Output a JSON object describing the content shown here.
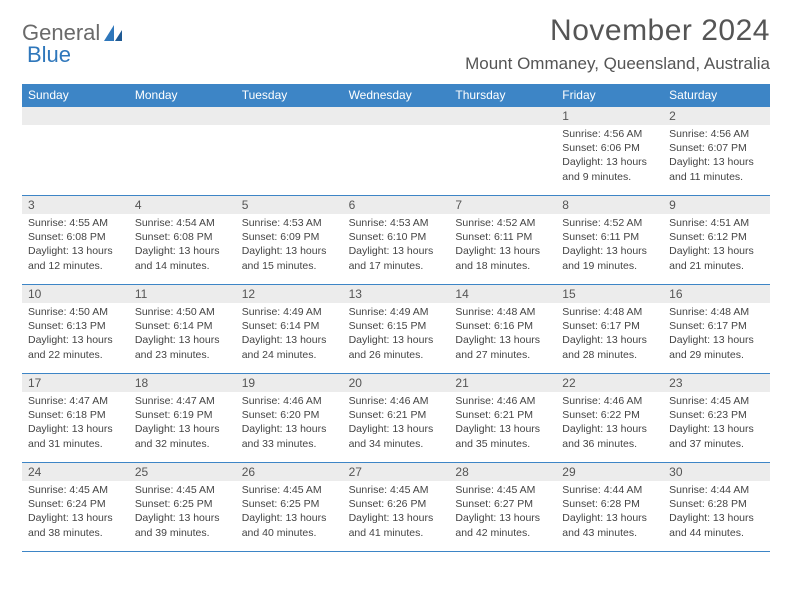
{
  "logo": {
    "word1": "General",
    "word2": "Blue"
  },
  "title": "November 2024",
  "location": "Mount Ommaney, Queensland, Australia",
  "colors": {
    "header_bg": "#3d85c6",
    "header_text": "#ffffff",
    "daynum_bg": "#ececec",
    "border": "#3d85c6",
    "logo_gray": "#6a6a6a",
    "logo_blue": "#2f77bb"
  },
  "day_names": [
    "Sunday",
    "Monday",
    "Tuesday",
    "Wednesday",
    "Thursday",
    "Friday",
    "Saturday"
  ],
  "weeks": [
    [
      null,
      null,
      null,
      null,
      null,
      {
        "n": "1",
        "sunrise": "4:56 AM",
        "sunset": "6:06 PM",
        "daylight": "13 hours and 9 minutes."
      },
      {
        "n": "2",
        "sunrise": "4:56 AM",
        "sunset": "6:07 PM",
        "daylight": "13 hours and 11 minutes."
      }
    ],
    [
      {
        "n": "3",
        "sunrise": "4:55 AM",
        "sunset": "6:08 PM",
        "daylight": "13 hours and 12 minutes."
      },
      {
        "n": "4",
        "sunrise": "4:54 AM",
        "sunset": "6:08 PM",
        "daylight": "13 hours and 14 minutes."
      },
      {
        "n": "5",
        "sunrise": "4:53 AM",
        "sunset": "6:09 PM",
        "daylight": "13 hours and 15 minutes."
      },
      {
        "n": "6",
        "sunrise": "4:53 AM",
        "sunset": "6:10 PM",
        "daylight": "13 hours and 17 minutes."
      },
      {
        "n": "7",
        "sunrise": "4:52 AM",
        "sunset": "6:11 PM",
        "daylight": "13 hours and 18 minutes."
      },
      {
        "n": "8",
        "sunrise": "4:52 AM",
        "sunset": "6:11 PM",
        "daylight": "13 hours and 19 minutes."
      },
      {
        "n": "9",
        "sunrise": "4:51 AM",
        "sunset": "6:12 PM",
        "daylight": "13 hours and 21 minutes."
      }
    ],
    [
      {
        "n": "10",
        "sunrise": "4:50 AM",
        "sunset": "6:13 PM",
        "daylight": "13 hours and 22 minutes."
      },
      {
        "n": "11",
        "sunrise": "4:50 AM",
        "sunset": "6:14 PM",
        "daylight": "13 hours and 23 minutes."
      },
      {
        "n": "12",
        "sunrise": "4:49 AM",
        "sunset": "6:14 PM",
        "daylight": "13 hours and 24 minutes."
      },
      {
        "n": "13",
        "sunrise": "4:49 AM",
        "sunset": "6:15 PM",
        "daylight": "13 hours and 26 minutes."
      },
      {
        "n": "14",
        "sunrise": "4:48 AM",
        "sunset": "6:16 PM",
        "daylight": "13 hours and 27 minutes."
      },
      {
        "n": "15",
        "sunrise": "4:48 AM",
        "sunset": "6:17 PM",
        "daylight": "13 hours and 28 minutes."
      },
      {
        "n": "16",
        "sunrise": "4:48 AM",
        "sunset": "6:17 PM",
        "daylight": "13 hours and 29 minutes."
      }
    ],
    [
      {
        "n": "17",
        "sunrise": "4:47 AM",
        "sunset": "6:18 PM",
        "daylight": "13 hours and 31 minutes."
      },
      {
        "n": "18",
        "sunrise": "4:47 AM",
        "sunset": "6:19 PM",
        "daylight": "13 hours and 32 minutes."
      },
      {
        "n": "19",
        "sunrise": "4:46 AM",
        "sunset": "6:20 PM",
        "daylight": "13 hours and 33 minutes."
      },
      {
        "n": "20",
        "sunrise": "4:46 AM",
        "sunset": "6:21 PM",
        "daylight": "13 hours and 34 minutes."
      },
      {
        "n": "21",
        "sunrise": "4:46 AM",
        "sunset": "6:21 PM",
        "daylight": "13 hours and 35 minutes."
      },
      {
        "n": "22",
        "sunrise": "4:46 AM",
        "sunset": "6:22 PM",
        "daylight": "13 hours and 36 minutes."
      },
      {
        "n": "23",
        "sunrise": "4:45 AM",
        "sunset": "6:23 PM",
        "daylight": "13 hours and 37 minutes."
      }
    ],
    [
      {
        "n": "24",
        "sunrise": "4:45 AM",
        "sunset": "6:24 PM",
        "daylight": "13 hours and 38 minutes."
      },
      {
        "n": "25",
        "sunrise": "4:45 AM",
        "sunset": "6:25 PM",
        "daylight": "13 hours and 39 minutes."
      },
      {
        "n": "26",
        "sunrise": "4:45 AM",
        "sunset": "6:25 PM",
        "daylight": "13 hours and 40 minutes."
      },
      {
        "n": "27",
        "sunrise": "4:45 AM",
        "sunset": "6:26 PM",
        "daylight": "13 hours and 41 minutes."
      },
      {
        "n": "28",
        "sunrise": "4:45 AM",
        "sunset": "6:27 PM",
        "daylight": "13 hours and 42 minutes."
      },
      {
        "n": "29",
        "sunrise": "4:44 AM",
        "sunset": "6:28 PM",
        "daylight": "13 hours and 43 minutes."
      },
      {
        "n": "30",
        "sunrise": "4:44 AM",
        "sunset": "6:28 PM",
        "daylight": "13 hours and 44 minutes."
      }
    ]
  ],
  "labels": {
    "sunrise": "Sunrise:",
    "sunset": "Sunset:",
    "daylight": "Daylight:"
  }
}
